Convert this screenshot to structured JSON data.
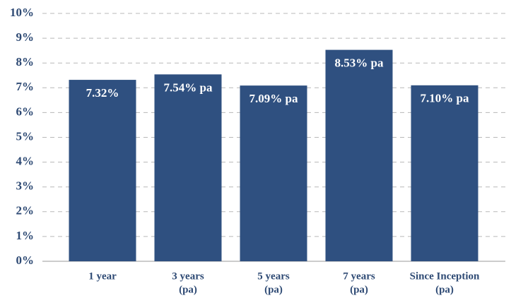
{
  "chart_data": {
    "type": "bar",
    "categories": [
      [
        "1 year"
      ],
      [
        "3 years",
        "(pa)"
      ],
      [
        "5 years",
        "(pa)"
      ],
      [
        "7 years",
        "(pa)"
      ],
      [
        "Since Inception",
        "(pa)"
      ]
    ],
    "values": [
      7.32,
      7.54,
      7.09,
      8.53,
      7.1
    ],
    "value_labels": [
      "7.32%",
      "7.54% pa",
      "7.09% pa",
      "8.53% pa",
      "7.10% pa"
    ],
    "color": "#2f5080",
    "ylim": [
      0,
      10
    ],
    "yticks": [
      {
        "value": 0,
        "label": "0%"
      },
      {
        "value": 1,
        "label": "1%"
      },
      {
        "value": 2,
        "label": "2%"
      },
      {
        "value": 3,
        "label": "3%"
      },
      {
        "value": 4,
        "label": "4%"
      },
      {
        "value": 5,
        "label": "5%"
      },
      {
        "value": 6,
        "label": "6%"
      },
      {
        "value": 7,
        "label": "7%"
      },
      {
        "value": 8,
        "label": "8%"
      },
      {
        "value": 9,
        "label": "9%"
      },
      {
        "value": 10,
        "label": "10%"
      }
    ],
    "grid": true
  }
}
